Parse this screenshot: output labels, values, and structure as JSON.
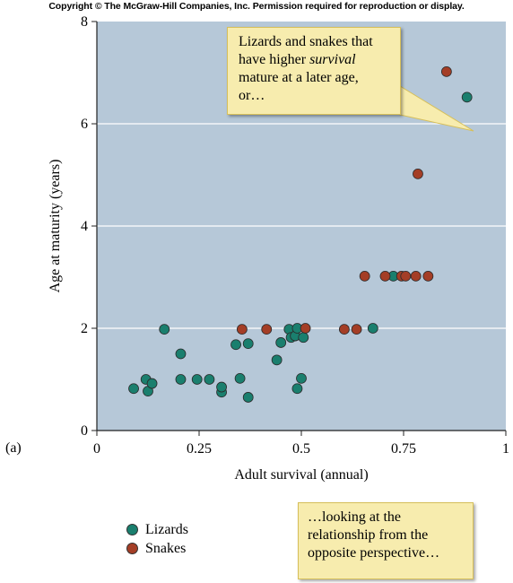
{
  "copyright": "Copyright © The McGraw-Hill Companies, Inc. Permission required for reproduction or display.",
  "panel_label": "(a)",
  "chart_data": {
    "type": "scatter",
    "xlabel": "Adult survival (annual)",
    "ylabel": "Age at maturity (years)",
    "xlim": [
      0,
      1
    ],
    "ylim": [
      0,
      8
    ],
    "x_ticks": [
      0,
      0.25,
      0.5,
      0.75,
      1
    ],
    "x_tick_labels": [
      "0",
      "0.25",
      "0.5",
      "0.75",
      "1"
    ],
    "y_ticks": [
      0,
      2,
      4,
      6,
      8
    ],
    "y_tick_labels": [
      "0",
      "2",
      "4",
      "6",
      "8"
    ],
    "grid": "horizontal",
    "legend_position": "bottom-left",
    "series": [
      {
        "name": "Lizards",
        "color": "#1a7f6e",
        "points": [
          [
            0.09,
            0.82
          ],
          [
            0.12,
            1.0
          ],
          [
            0.125,
            0.77
          ],
          [
            0.135,
            0.92
          ],
          [
            0.165,
            1.98
          ],
          [
            0.205,
            1.5
          ],
          [
            0.205,
            1.0
          ],
          [
            0.245,
            1.0
          ],
          [
            0.275,
            1.0
          ],
          [
            0.305,
            0.75
          ],
          [
            0.305,
            0.85
          ],
          [
            0.34,
            1.68
          ],
          [
            0.35,
            1.02
          ],
          [
            0.37,
            0.65
          ],
          [
            0.37,
            1.7
          ],
          [
            0.44,
            1.38
          ],
          [
            0.45,
            1.72
          ],
          [
            0.47,
            1.98
          ],
          [
            0.475,
            1.82
          ],
          [
            0.485,
            1.85
          ],
          [
            0.49,
            0.82
          ],
          [
            0.49,
            2.0
          ],
          [
            0.5,
            1.02
          ],
          [
            0.505,
            1.82
          ],
          [
            0.725,
            3.02
          ],
          [
            0.675,
            2.0
          ],
          [
            0.905,
            6.52
          ]
        ]
      },
      {
        "name": "Snakes",
        "color": "#a43e26",
        "points": [
          [
            0.355,
            1.98
          ],
          [
            0.415,
            1.98
          ],
          [
            0.51,
            2.0
          ],
          [
            0.605,
            1.98
          ],
          [
            0.635,
            1.98
          ],
          [
            0.655,
            3.02
          ],
          [
            0.705,
            3.02
          ],
          [
            0.745,
            3.02
          ],
          [
            0.755,
            3.02
          ],
          [
            0.78,
            3.02
          ],
          [
            0.81,
            3.02
          ],
          [
            0.785,
            5.02
          ],
          [
            0.855,
            7.02
          ]
        ]
      }
    ],
    "annotations": [
      {
        "lines": [
          "Lizards and snakes that",
          "have higher ",
          "survival",
          " mature at a later age,",
          "or…"
        ]
      }
    ]
  },
  "callout_top": {
    "line1": "Lizards and snakes that",
    "line2_pre": "have higher ",
    "line2_em": "survival",
    "line3": "mature at a later age,",
    "line4": "or…"
  },
  "callout_bottom": {
    "line1": "…looking at the",
    "line2": "relationship from the",
    "line3": "opposite perspective…"
  },
  "legend": {
    "lizards": "Lizards",
    "snakes": "Snakes"
  }
}
